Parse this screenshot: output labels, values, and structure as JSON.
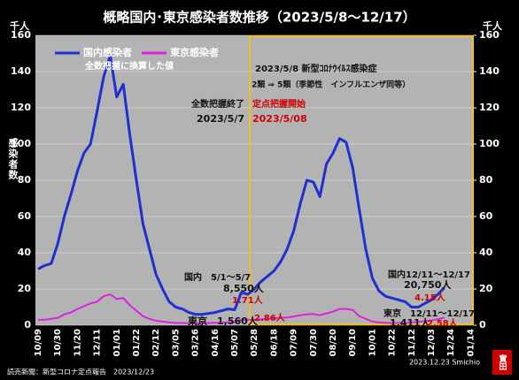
{
  "chart_data": {
    "type": "line",
    "title": "概略国内･東京感染者数推移（2023/5/8〜12/17）",
    "y_unit": "千人",
    "y2_unit": "千人",
    "y_label": "感染者数",
    "categories": [
      "10/09",
      null,
      null,
      "10/30",
      null,
      null,
      "11/20",
      null,
      null,
      "12/11",
      null,
      null,
      "01/01",
      null,
      null,
      "01/22",
      null,
      null,
      "02/12",
      null,
      null,
      "03/05",
      null,
      null,
      "03/26",
      null,
      null,
      "04/16",
      null,
      null,
      "05/07",
      null,
      null,
      "05/28",
      null,
      null,
      "06/18",
      null,
      null,
      "07/09",
      null,
      null,
      "07/30",
      null,
      null,
      "08/20",
      null,
      null,
      "09/10",
      null,
      null,
      "10/01",
      null,
      null,
      "10/22",
      null,
      null,
      "11/12",
      null,
      null,
      "12/03",
      null,
      null,
      "12/24",
      null,
      null,
      "01/14"
    ],
    "series": [
      {
        "name": "国内感染者",
        "color": "#1f2fd0",
        "values": [
          31,
          33,
          34,
          45,
          60,
          72,
          85,
          95,
          100,
          118,
          137,
          149,
          126,
          133,
          105,
          80,
          56,
          42,
          28,
          20,
          13,
          10,
          9,
          7,
          6,
          6,
          6.5,
          7,
          8,
          9,
          8.55,
          18,
          17,
          20,
          24,
          27,
          30,
          35,
          42,
          52,
          67,
          80,
          79,
          71,
          89,
          95,
          103,
          101,
          87,
          64,
          42,
          26,
          19,
          16,
          15,
          14,
          13,
          10,
          10,
          12,
          14,
          17,
          20.75,
          null,
          null,
          null,
          null
        ]
      },
      {
        "name": "東京感染者",
        "color": "#e020e0",
        "values": [
          3,
          3,
          3.5,
          4,
          6,
          7,
          9,
          10.5,
          12,
          13,
          16,
          17,
          14.5,
          15,
          11,
          8,
          5,
          3.5,
          2.5,
          2,
          1.5,
          1.2,
          1.2,
          1.1,
          1.1,
          1.1,
          1.2,
          1.3,
          1.4,
          1.56,
          1.71,
          2.86,
          3,
          3,
          3.2,
          3.5,
          3.8,
          4,
          4.3,
          4.8,
          5.5,
          6,
          6.2,
          5.5,
          6.5,
          7.5,
          9,
          9,
          8.5,
          5,
          3.5,
          2,
          1.5,
          1.3,
          1.2,
          1.2,
          1.3,
          1.5,
          1.8,
          2.2,
          2.58,
          3.3,
          4.15,
          null,
          null,
          null,
          null
        ]
      }
    ],
    "legend_note": "全数把握に換算した値",
    "ylim": [
      0,
      160
    ],
    "yticks": [
      0,
      20,
      40,
      60,
      80,
      100,
      120,
      140,
      160
    ],
    "y2lim": [
      0,
      160
    ],
    "y2ticks": [
      0,
      20,
      40,
      60,
      80,
      100,
      120,
      140,
      160
    ],
    "grid": true,
    "annotations": [
      "2023/5/8 新型ｺﾛﾅｳｲﾙｽ感染症",
      "2類 ⇒ 5類（季節性　インフルエンザ同等）",
      "全数把握終了",
      "定点把握開始",
      "2023/5/7",
      "2023/5/08",
      "国内　5/1～5/7",
      "8,550人",
      "1.71人",
      "東京",
      "1,560人",
      "2.86人",
      "国内12/11～12/17",
      "20,750人",
      "4.15人",
      "東京　12/11～12/17",
      "1,411人",
      "2.58人"
    ],
    "source": "読売新聞：新型コロナ定点報告　2023/12/23",
    "credit": "2023.12.23 Smichio",
    "stamp": "實田"
  }
}
